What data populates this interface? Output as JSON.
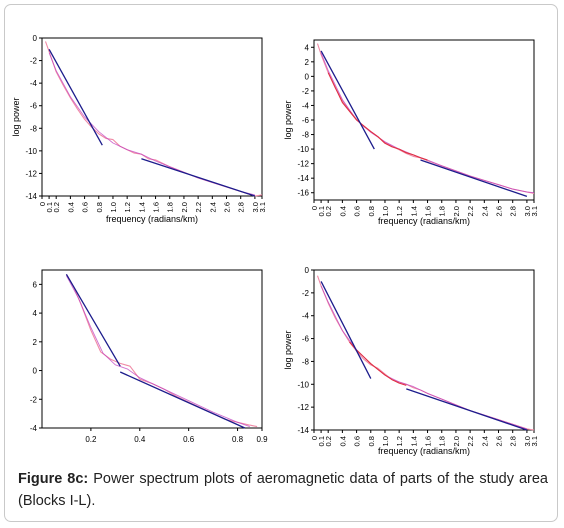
{
  "caption": {
    "label": "Figure 8c:",
    "text": "Power spectrum plots of aeromagnetic data of parts of the study area (Blocks I-L)."
  },
  "colors": {
    "observed": "#f08aa6",
    "smoothed": "#c040c0",
    "fit_red": "#e03040",
    "fit_line": "#1c1c8c"
  },
  "chart_data": [
    {
      "type": "line",
      "xlabel": "frequency (radians/km)",
      "ylabel": "log power",
      "xlim": [
        0,
        3.1
      ],
      "ylim": [
        -14,
        0
      ],
      "xticks": [
        0,
        0.1,
        0.2,
        0.4,
        0.6,
        0.8,
        1.0,
        1.2,
        1.4,
        1.6,
        1.8,
        2.0,
        2.2,
        2.4,
        2.6,
        2.8,
        3.0,
        3.1
      ],
      "xtick_labels": [
        "0",
        "0.1",
        "0.2",
        "0.4",
        "0.6",
        "0.8",
        "1.0",
        "1.2",
        "1.4",
        "1.6",
        "1.8",
        "2.0",
        "2.2",
        "2.4",
        "2.6",
        "2.8",
        "3.0",
        "3.1"
      ],
      "yticks": [
        0,
        -2,
        -4,
        -6,
        -8,
        -10,
        -12,
        -14
      ],
      "series": [
        {
          "role": "observed",
          "x": [
            0.05,
            0.1,
            0.2,
            0.3,
            0.4,
            0.5,
            0.6,
            0.7,
            0.8,
            0.9,
            1.0,
            1.1,
            1.2,
            1.3,
            1.4,
            1.5,
            1.6,
            1.8,
            2.0,
            2.2,
            2.4,
            2.6,
            2.8,
            3.0,
            3.1
          ],
          "y": [
            -0.3,
            -1.2,
            -3.0,
            -4.2,
            -5.3,
            -6.3,
            -7.2,
            -7.9,
            -8.5,
            -8.9,
            -9.0,
            -9.6,
            -9.9,
            -10.2,
            -10.3,
            -10.7,
            -10.8,
            -11.4,
            -11.9,
            -12.4,
            -12.8,
            -13.2,
            -13.6,
            -14.0,
            -13.9
          ]
        },
        {
          "role": "smoothed",
          "x": [
            0.1,
            0.2,
            0.4,
            0.6,
            0.8,
            1.0,
            1.2,
            1.4,
            1.6,
            1.8,
            2.0,
            2.2,
            2.4,
            2.6,
            2.8,
            3.0
          ],
          "y": [
            -1.3,
            -2.9,
            -5.2,
            -7.0,
            -8.3,
            -9.3,
            -9.9,
            -10.3,
            -10.9,
            -11.4,
            -11.9,
            -12.4,
            -12.8,
            -13.2,
            -13.6,
            -13.9
          ]
        },
        {
          "role": "fit_line",
          "x": [
            0.1,
            0.85
          ],
          "y": [
            -1.0,
            -9.5
          ]
        },
        {
          "role": "fit_line",
          "x": [
            1.4,
            3.0
          ],
          "y": [
            -10.7,
            -14.0
          ]
        }
      ]
    },
    {
      "type": "line",
      "xlabel": "frequency (radians/km)",
      "ylabel": "log power",
      "xlim": [
        0,
        3.1
      ],
      "ylim": [
        -17,
        5
      ],
      "xticks": [
        0,
        0.1,
        0.2,
        0.4,
        0.6,
        0.8,
        1.0,
        1.2,
        1.4,
        1.6,
        1.8,
        2.0,
        2.2,
        2.4,
        2.6,
        2.8,
        3.0,
        3.1
      ],
      "xtick_labels": [
        "0",
        "0.1",
        "0.2",
        "0.4",
        "0.6",
        "0.8",
        "1.0",
        "1.2",
        "1.4",
        "1.6",
        "1.8",
        "2.0",
        "2.2",
        "2.4",
        "2.6",
        "2.8",
        "3.0",
        "3.1"
      ],
      "yticks": [
        4,
        2,
        0,
        -2,
        -4,
        -6,
        -8,
        -10,
        -12,
        -14,
        -16
      ],
      "series": [
        {
          "role": "observed",
          "x": [
            0.05,
            0.1,
            0.2,
            0.3,
            0.4,
            0.5,
            0.6,
            0.7,
            0.8,
            0.9,
            1.0,
            1.1,
            1.2,
            1.3,
            1.4,
            1.5,
            1.6,
            1.8,
            2.0,
            2.2,
            2.4,
            2.6,
            2.8,
            3.0,
            3.1
          ],
          "y": [
            4.5,
            3.0,
            0.5,
            -1.6,
            -3.3,
            -4.7,
            -5.9,
            -6.9,
            -7.6,
            -8.3,
            -9.1,
            -9.6,
            -10.1,
            -10.6,
            -11.0,
            -11.2,
            -11.6,
            -12.3,
            -13.0,
            -13.7,
            -14.3,
            -14.9,
            -15.5,
            -15.9,
            -16.1
          ]
        },
        {
          "role": "smoothed",
          "x": [
            0.1,
            0.2,
            0.4,
            0.6,
            0.8,
            1.0,
            1.2,
            1.4,
            1.6,
            1.8,
            2.0,
            2.2,
            2.4,
            2.6,
            2.8,
            3.0,
            3.1
          ],
          "y": [
            3.2,
            0.8,
            -3.2,
            -6.0,
            -7.7,
            -9.0,
            -10.0,
            -10.8,
            -11.5,
            -12.3,
            -13.0,
            -13.7,
            -14.3,
            -14.9,
            -15.5,
            -15.9,
            -16.0
          ]
        },
        {
          "role": "fit_red",
          "x": [
            0.2,
            0.4,
            0.6,
            0.8,
            0.9,
            1.0,
            1.1,
            1.2,
            1.3,
            1.4,
            1.5,
            1.6
          ],
          "y": [
            0.5,
            -3.6,
            -6.0,
            -7.6,
            -8.3,
            -9.2,
            -9.7,
            -10.0,
            -10.5,
            -10.8,
            -11.2,
            -11.5
          ]
        },
        {
          "role": "fit_line",
          "x": [
            0.1,
            0.85
          ],
          "y": [
            3.5,
            -10.0
          ]
        },
        {
          "role": "fit_line",
          "x": [
            1.5,
            3.0
          ],
          "y": [
            -11.5,
            -16.5
          ]
        }
      ]
    },
    {
      "type": "line",
      "xlabel": "",
      "ylabel": "",
      "xlim": [
        0,
        0.9
      ],
      "ylim": [
        -4,
        7
      ],
      "xticks": [
        0.2,
        0.4,
        0.6,
        0.8,
        0.9
      ],
      "xtick_labels": [
        "0.2",
        "0.4",
        "0.6",
        "0.8",
        "0.9"
      ],
      "yticks": [
        6,
        4,
        2,
        0,
        -2,
        -4
      ],
      "series": [
        {
          "role": "observed",
          "x": [
            0.1,
            0.13,
            0.16,
            0.2,
            0.24,
            0.28,
            0.32,
            0.36,
            0.4,
            0.45,
            0.5,
            0.55,
            0.6,
            0.65,
            0.7,
            0.75,
            0.8,
            0.85,
            0.88
          ],
          "y": [
            6.7,
            5.8,
            4.6,
            2.8,
            1.3,
            0.8,
            0.5,
            0.3,
            -0.6,
            -0.9,
            -1.3,
            -1.8,
            -2.2,
            -2.6,
            -3.0,
            -3.4,
            -3.6,
            -3.8,
            -3.9
          ]
        },
        {
          "role": "smoothed",
          "x": [
            0.1,
            0.15,
            0.2,
            0.25,
            0.3,
            0.35,
            0.4,
            0.5,
            0.6,
            0.7,
            0.8,
            0.85
          ],
          "y": [
            6.6,
            5.0,
            3.0,
            1.2,
            0.4,
            0.1,
            -0.5,
            -1.3,
            -2.1,
            -2.9,
            -3.6,
            -3.9
          ]
        },
        {
          "role": "fit_line",
          "x": [
            0.1,
            0.32
          ],
          "y": [
            6.7,
            0.3
          ]
        },
        {
          "role": "fit_line",
          "x": [
            0.32,
            0.83
          ],
          "y": [
            -0.1,
            -4.0
          ]
        }
      ]
    },
    {
      "type": "line",
      "xlabel": "frequency (radians/km)",
      "ylabel": "log power",
      "xlim": [
        0,
        3.1
      ],
      "ylim": [
        -14,
        0
      ],
      "xticks": [
        0,
        0.1,
        0.2,
        0.4,
        0.6,
        0.8,
        1.0,
        1.2,
        1.4,
        1.6,
        1.8,
        2.0,
        2.2,
        2.4,
        2.6,
        2.8,
        3.0,
        3.1
      ],
      "xtick_labels": [
        "0",
        "0.1",
        "0.2",
        "0.4",
        "0.6",
        "0.8",
        "1.0",
        "1.2",
        "1.4",
        "1.6",
        "1.8",
        "2.0",
        "2.2",
        "2.4",
        "2.6",
        "2.8",
        "3.0",
        "3.1"
      ],
      "yticks": [
        0,
        -2,
        -4,
        -6,
        -8,
        -10,
        -12,
        -14
      ],
      "series": [
        {
          "role": "observed",
          "x": [
            0.05,
            0.1,
            0.2,
            0.3,
            0.4,
            0.5,
            0.6,
            0.7,
            0.8,
            0.9,
            1.0,
            1.1,
            1.2,
            1.3,
            1.4,
            1.5,
            1.6,
            1.8,
            2.0,
            2.2,
            2.4,
            2.6,
            2.8,
            3.0,
            3.1
          ],
          "y": [
            -0.5,
            -1.4,
            -2.9,
            -4.2,
            -5.3,
            -6.3,
            -7.1,
            -7.8,
            -8.3,
            -8.6,
            -9.1,
            -9.6,
            -9.8,
            -10.0,
            -10.3,
            -10.5,
            -10.8,
            -11.3,
            -11.8,
            -12.3,
            -12.7,
            -13.1,
            -13.5,
            -13.9,
            -14.0
          ]
        },
        {
          "role": "smoothed",
          "x": [
            0.1,
            0.2,
            0.4,
            0.6,
            0.8,
            1.0,
            1.2,
            1.4,
            1.6,
            1.8,
            2.0,
            2.2,
            2.4,
            2.6,
            2.8,
            3.0
          ],
          "y": [
            -1.4,
            -2.8,
            -5.3,
            -7.0,
            -8.2,
            -9.2,
            -9.8,
            -10.2,
            -10.8,
            -11.3,
            -11.8,
            -12.3,
            -12.7,
            -13.1,
            -13.5,
            -13.9
          ]
        },
        {
          "role": "fit_red",
          "x": [
            0.5,
            0.6,
            0.7,
            0.8,
            0.9,
            1.0,
            1.1,
            1.2,
            1.3
          ],
          "y": [
            -6.3,
            -7.0,
            -7.6,
            -8.2,
            -8.7,
            -9.2,
            -9.6,
            -9.9,
            -10.1
          ]
        },
        {
          "role": "fit_line",
          "x": [
            0.1,
            0.8
          ],
          "y": [
            -1.0,
            -9.5
          ]
        },
        {
          "role": "fit_line",
          "x": [
            1.3,
            3.0
          ],
          "y": [
            -10.4,
            -14.0
          ]
        }
      ]
    }
  ]
}
